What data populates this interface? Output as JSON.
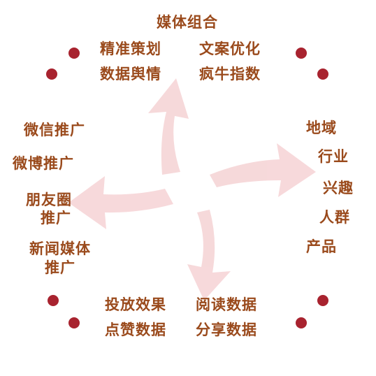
{
  "colors": {
    "text": "#9a4a1c",
    "dot": "#a8232f",
    "arrow": "#f6d5d7"
  },
  "top": {
    "title": "媒体组合",
    "left1": "精准策划",
    "right1": "文案优化",
    "left2": "数据舆情",
    "right2": "疯牛指数"
  },
  "left": {
    "item1": "微信推广",
    "item2": "微博推广",
    "item3_line1": "朋友圈",
    "item3_line2": "推广",
    "item4_line1": "新闻媒体",
    "item4_line2": "推广"
  },
  "right": {
    "item1": "地域",
    "item2": "行业",
    "item3": "兴趣",
    "item4": "人群",
    "item5": "产品"
  },
  "bottom": {
    "left1": "投放效果",
    "right1": "阅读数据",
    "left2": "点赞数据",
    "right2": "分享数据"
  }
}
